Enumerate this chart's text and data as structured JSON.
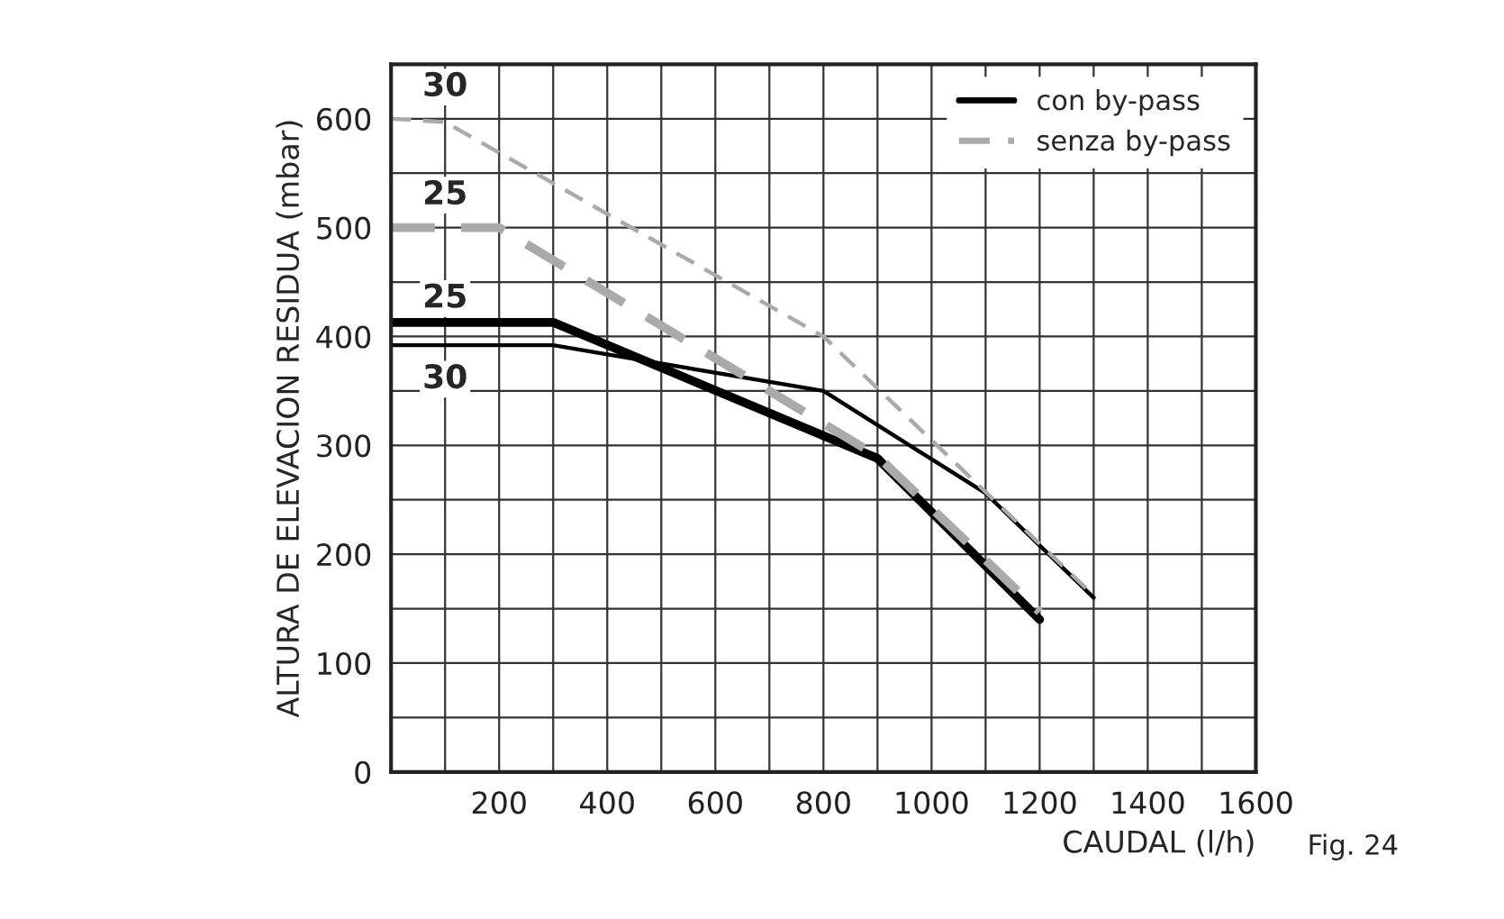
{
  "chart_data": {
    "type": "line",
    "xlabel": "CAUDAL (l/h)",
    "ylabel": "ALTURA DE ELEVACION RESIDUA (mbar)",
    "series": [
      {
        "name": "con by-pass",
        "color": "#000000",
        "line_style": "solid",
        "x": [
          0,
          300,
          900,
          1200
        ],
        "values": [
          413,
          413,
          288,
          140
        ]
      },
      {
        "color": "#000000",
        "line_style": "solid",
        "x": [
          0,
          300,
          800,
          1100,
          1300
        ],
        "values": [
          392,
          392,
          350,
          256,
          160
        ]
      },
      {
        "name": "senza by-pass",
        "color": "#aaaaaa",
        "line_style": "dashed",
        "x": [
          0,
          200,
          900,
          1200
        ],
        "values": [
          500,
          500,
          290,
          147
        ]
      },
      {
        "color": "#aaaaaa",
        "line_style": "dashed",
        "x": [
          0,
          100,
          800,
          1300
        ],
        "values": [
          600,
          597,
          400,
          162
        ]
      }
    ],
    "xlim": [
      0,
      1600
    ],
    "ylim": [
      0,
      650
    ],
    "xticks": [
      {
        "value": 100,
        "label": null
      },
      200,
      {
        "value": 300,
        "label": null
      },
      400,
      {
        "value": 500,
        "label": null
      },
      600,
      {
        "value": 700,
        "label": null
      },
      800,
      {
        "value": 900,
        "label": null
      },
      1000,
      {
        "value": 1100,
        "label": null
      },
      1200,
      {
        "value": 1300,
        "label": null
      },
      1400,
      {
        "value": 1500,
        "label": null
      },
      1600
    ],
    "yticks": [
      0,
      {
        "value": 50,
        "label": null
      },
      100,
      {
        "value": 150,
        "label": null
      },
      200,
      {
        "value": 250,
        "label": null
      },
      300,
      {
        "value": 350,
        "label": null
      },
      400,
      {
        "value": 450,
        "label": null
      },
      500,
      {
        "value": 550,
        "label": null
      },
      600
    ],
    "grid": true,
    "legend": "top right",
    "annotations": [
      "30",
      "25",
      "25",
      "30",
      "Fig. 24"
    ]
  }
}
